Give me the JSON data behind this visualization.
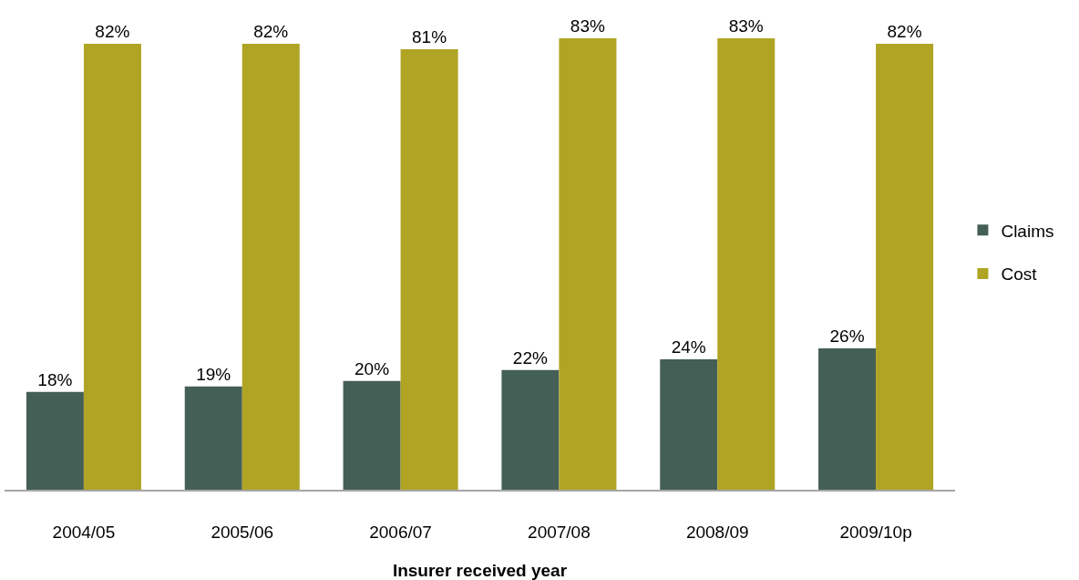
{
  "chart_data": {
    "type": "bar",
    "xlabel": "Insurer received year",
    "categories": [
      "2004/05",
      "2005/06",
      "2006/07",
      "2007/08",
      "2008/09",
      "2009/10p"
    ],
    "series": [
      {
        "name": "Claims",
        "color": "#445f55",
        "values": [
          18,
          19,
          20,
          22,
          24,
          26
        ],
        "value_labels": [
          "18%",
          "19%",
          "20%",
          "22%",
          "24%",
          "26%"
        ]
      },
      {
        "name": "Cost",
        "color": "#b0a424",
        "values": [
          82,
          82,
          81,
          83,
          83,
          82
        ],
        "value_labels": [
          "82%",
          "82%",
          "81%",
          "83%",
          "83%",
          "82%"
        ]
      }
    ],
    "tick_labels": "x",
    "grid": false,
    "legend": "right"
  }
}
